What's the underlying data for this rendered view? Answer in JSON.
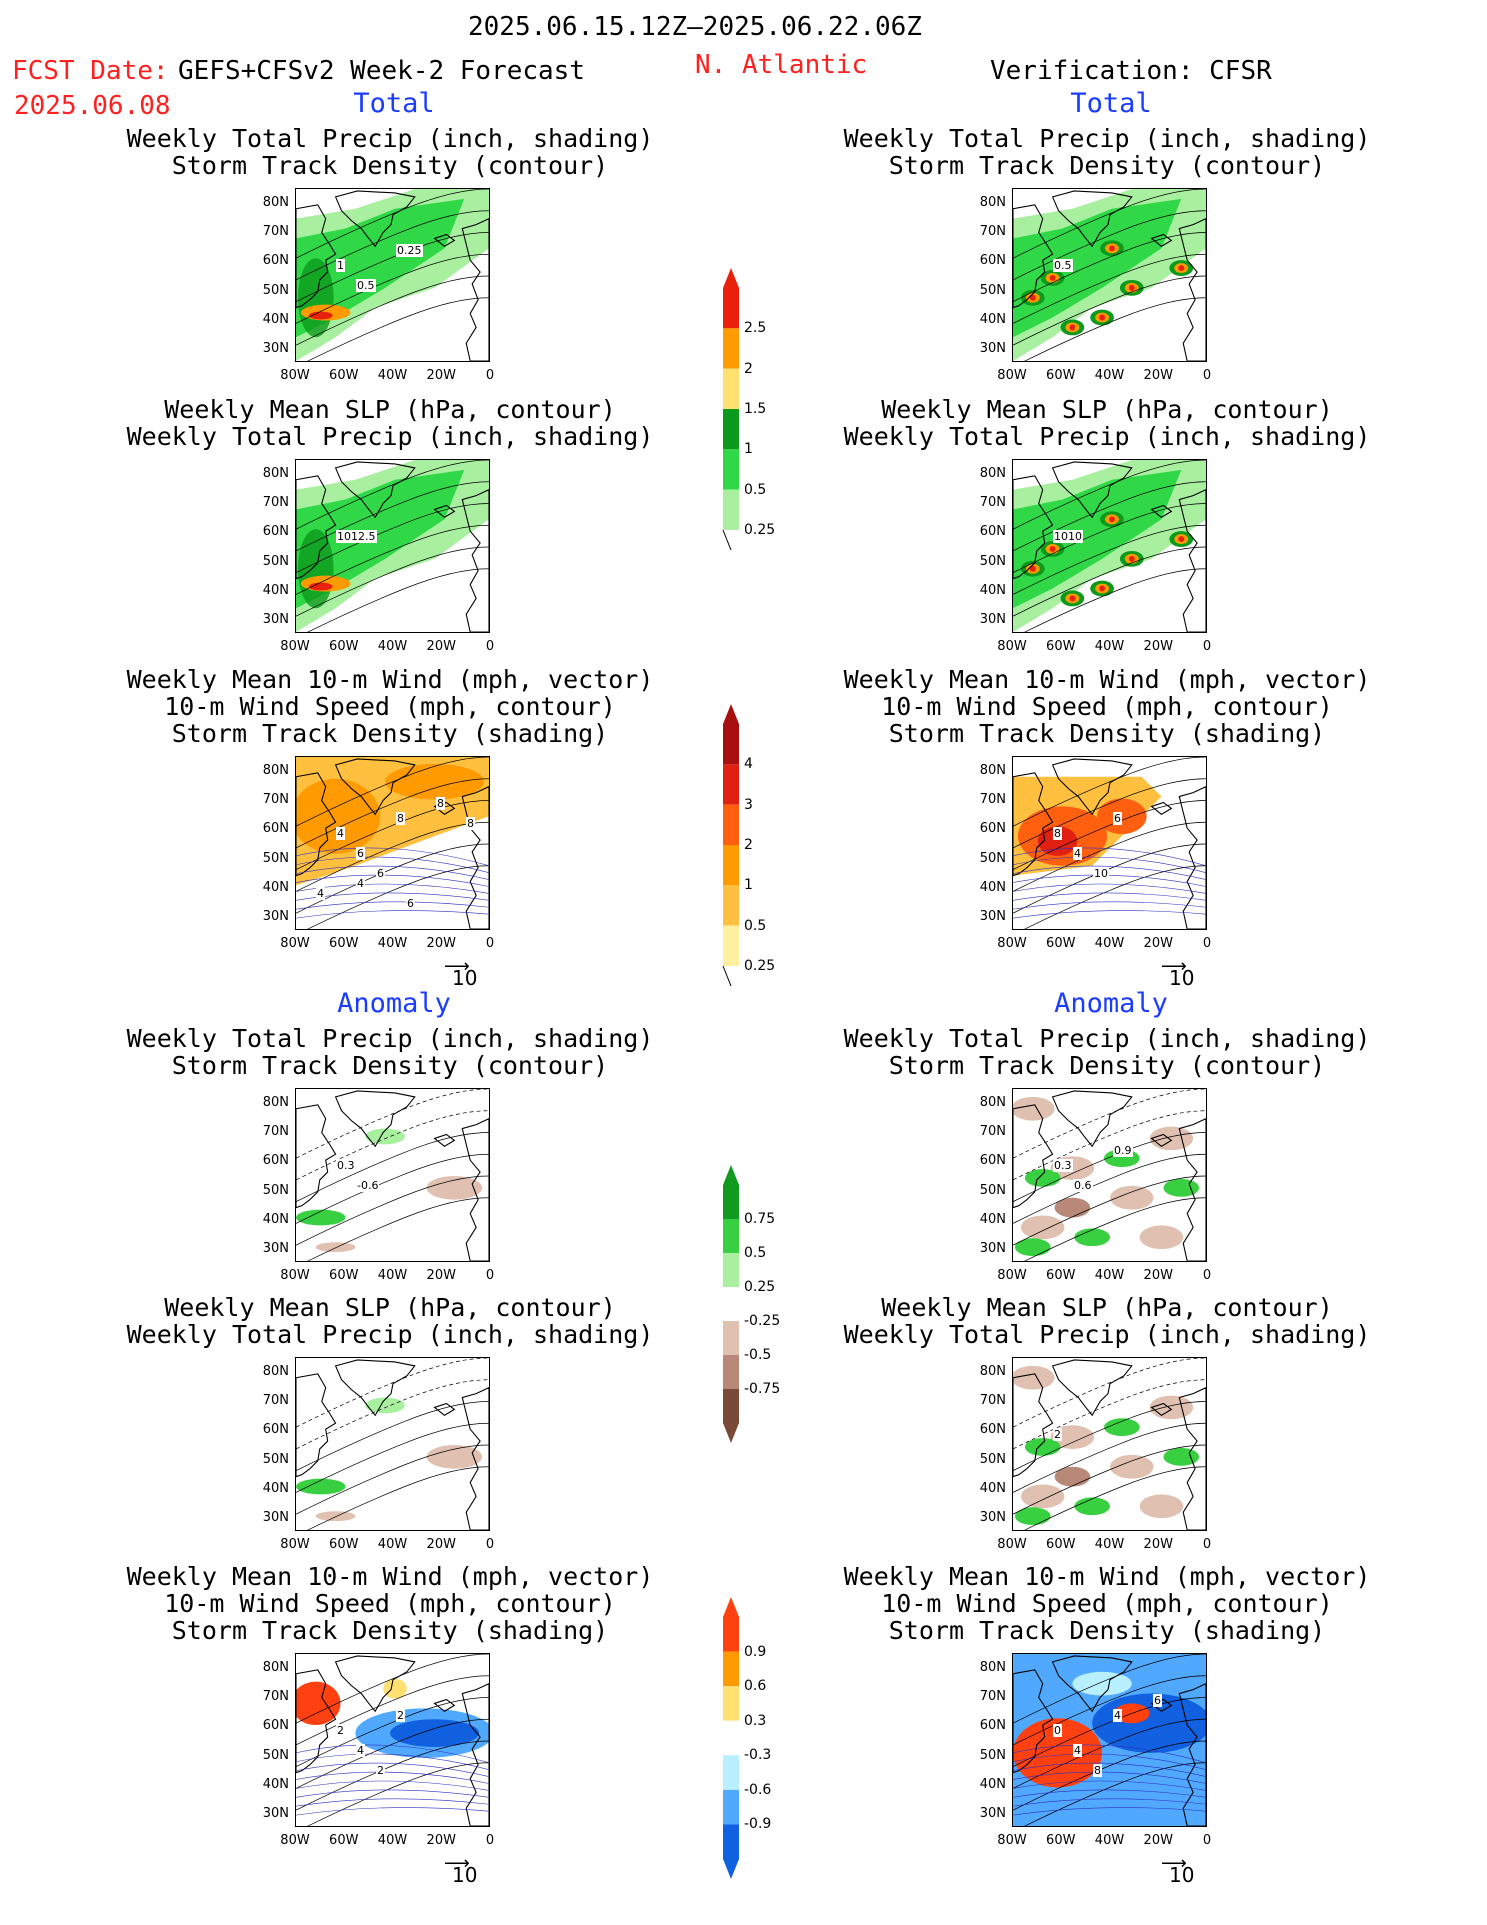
{
  "header": {
    "period": "2025.06.15.12Z–2025.06.22.06Z",
    "fcst_label": "FCST Date:",
    "model": "GEFS+CFSv2 Week-2 Forecast",
    "fcst_date": "2025.06.08",
    "region": "N. Atlantic",
    "verification": "Verification: CFSR"
  },
  "sections": {
    "total": "Total",
    "anomaly": "Anomaly"
  },
  "titles": {
    "precip_storm": [
      "Weekly Total Precip (inch, shading)",
      "Storm Track Density (contour)"
    ],
    "slp_precip": [
      "Weekly Mean SLP (hPa, contour)",
      "Weekly Total Precip (inch, shading)"
    ],
    "wind_storm": [
      "Weekly Mean 10-m Wind (mph, vector)",
      "10-m Wind Speed (mph, contour)",
      "Storm Track Density (shading)"
    ]
  },
  "axes": {
    "lat_ticks": [
      "80N",
      "70N",
      "60N",
      "50N",
      "40N",
      "30N"
    ],
    "lon_ticks": [
      "80W",
      "60W",
      "40W",
      "20W",
      "0"
    ]
  },
  "vector_ref": "10",
  "contour_labels": {
    "fc_precip": [
      "1",
      "0.5",
      "0.25"
    ],
    "fc_slp": [
      "1012.5"
    ],
    "fc_wind": [
      "4",
      "6",
      "8",
      "6",
      "8",
      "4",
      "8",
      "6",
      "4"
    ],
    "ob_precip": [
      "0.5"
    ],
    "ob_slp": [
      "1010"
    ],
    "ob_wind": [
      "8",
      "4",
      "6",
      "10"
    ],
    "fa_precip": [
      "0.3",
      "-0.6"
    ],
    "oa_precip": [
      "0.3",
      "0.6",
      "0.9"
    ],
    "oa_slp": [
      "2"
    ],
    "fa_wind": [
      "2",
      "4",
      "2",
      "2"
    ],
    "oa_wind": [
      "0",
      "4",
      "4",
      "8",
      "6"
    ]
  },
  "chart_data": [
    {
      "type": "heatmap",
      "panel": "forecast-total-precip-storm",
      "colorbar": "precip-total"
    },
    {
      "type": "heatmap",
      "panel": "forecast-total-slp-precip",
      "colorbar": "precip-total"
    },
    {
      "type": "heatmap",
      "panel": "forecast-total-wind-storm",
      "colorbar": "storm-total"
    },
    {
      "type": "heatmap",
      "panel": "verification-total-precip-storm",
      "colorbar": "precip-total"
    },
    {
      "type": "heatmap",
      "panel": "verification-total-slp-precip",
      "colorbar": "precip-total"
    },
    {
      "type": "heatmap",
      "panel": "verification-total-wind-storm",
      "colorbar": "storm-total"
    },
    {
      "type": "heatmap",
      "panel": "forecast-anomaly-precip-storm",
      "colorbar": "precip-anomaly"
    },
    {
      "type": "heatmap",
      "panel": "forecast-anomaly-slp-precip",
      "colorbar": "precip-anomaly"
    },
    {
      "type": "heatmap",
      "panel": "forecast-anomaly-wind-storm",
      "colorbar": "storm-anomaly"
    },
    {
      "type": "heatmap",
      "panel": "verification-anomaly-precip-storm",
      "colorbar": "precip-anomaly"
    },
    {
      "type": "heatmap",
      "panel": "verification-anomaly-slp-precip",
      "colorbar": "precip-anomaly"
    },
    {
      "type": "heatmap",
      "panel": "verification-anomaly-wind-storm",
      "colorbar": "storm-anomaly"
    }
  ],
  "colorbars": {
    "precip_total": {
      "levels": [
        "2.5",
        "2",
        "1.5",
        "1",
        "0.5",
        "0.25"
      ],
      "colors": [
        "#e8200c",
        "#ff9a00",
        "#ffe070",
        "#0c9a1c",
        "#30d848",
        "#a8f0a0"
      ]
    },
    "storm_total": {
      "levels": [
        "4",
        "3",
        "2",
        "1",
        "0.5",
        "0.25"
      ],
      "colors": [
        "#a81010",
        "#e02010",
        "#ff6010",
        "#ff9a00",
        "#ffc040",
        "#fff0a0"
      ]
    },
    "precip_anom": {
      "levels": [
        "0.75",
        "0.5",
        "0.25",
        "-0.25",
        "-0.5",
        "-0.75"
      ],
      "colors": [
        "#109a20",
        "#38d040",
        "#a8f0a0",
        "#ffffff",
        "#e0c0b0",
        "#b88878",
        "#7a4a38"
      ]
    },
    "storm_anom": {
      "levels": [
        "0.9",
        "0.6",
        "0.3",
        "-0.3",
        "-0.6",
        "-0.9"
      ],
      "colors": [
        "#ff4010",
        "#ff9a00",
        "#ffe070",
        "#ffffff",
        "#b8f0ff",
        "#50a8ff",
        "#1060e0"
      ]
    }
  },
  "colors": {
    "title_red": "#ff2020",
    "section_blue": "#1a3cff"
  }
}
